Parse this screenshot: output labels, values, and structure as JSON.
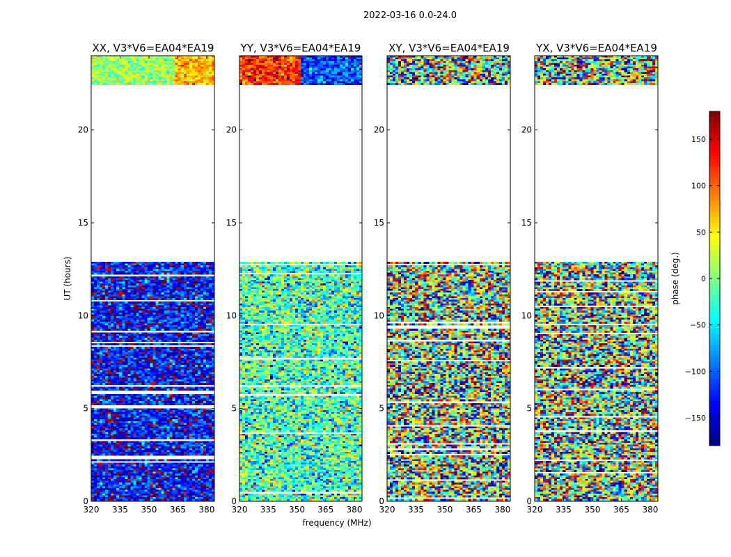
{
  "chart_data": {
    "type": "heatmap",
    "title": "2022-03-16 0.0-24.0",
    "xlabel": "frequency (MHz)",
    "ylabel": "UT (hours)",
    "xlim": [
      320,
      384
    ],
    "ylim": [
      0,
      24
    ],
    "xticks": [
      320,
      335,
      350,
      365,
      380
    ],
    "yticks": [
      0,
      5,
      10,
      15,
      20
    ],
    "panels": [
      {
        "title": "XX, V3*V6=EA04*EA19",
        "dominant_phase": -130,
        "spread": 70,
        "top_block_phase": 10,
        "top_block_spread": 45,
        "top_block_shift": 60,
        "top_block_shift_at": 363
      },
      {
        "title": "YY, V3*V6=EA04*EA19",
        "dominant_phase": -20,
        "spread": 90,
        "top_block_phase": 120,
        "top_block_spread": 55,
        "top_block_shift": -230,
        "top_block_shift_at": 352
      },
      {
        "title": "XY, V3*V6=EA04*EA19",
        "dominant_phase": 0,
        "spread": 180,
        "top_block_phase": 0,
        "top_block_spread": 180,
        "top_block_shift": 0,
        "top_block_shift_at": 384
      },
      {
        "title": "YX, V3*V6=EA04*EA19",
        "dominant_phase": 0,
        "spread": 180,
        "top_block_phase": 0,
        "top_block_spread": 180,
        "top_block_shift": 0,
        "top_block_shift_at": 384
      }
    ],
    "data_ut_ranges": [
      [
        0.0,
        12.9
      ],
      [
        22.4,
        24.0
      ]
    ],
    "empty_ut_range": [
      12.9,
      22.4
    ],
    "colorbar": {
      "label": "phase (deg.)",
      "range": [
        -180,
        180
      ],
      "ticks": [
        150,
        100,
        50,
        0,
        -50,
        -100,
        -150
      ],
      "tick_labels": [
        "150",
        "100",
        "50",
        "0",
        "−50",
        "−100",
        "−150"
      ],
      "colormap": "jet"
    }
  }
}
